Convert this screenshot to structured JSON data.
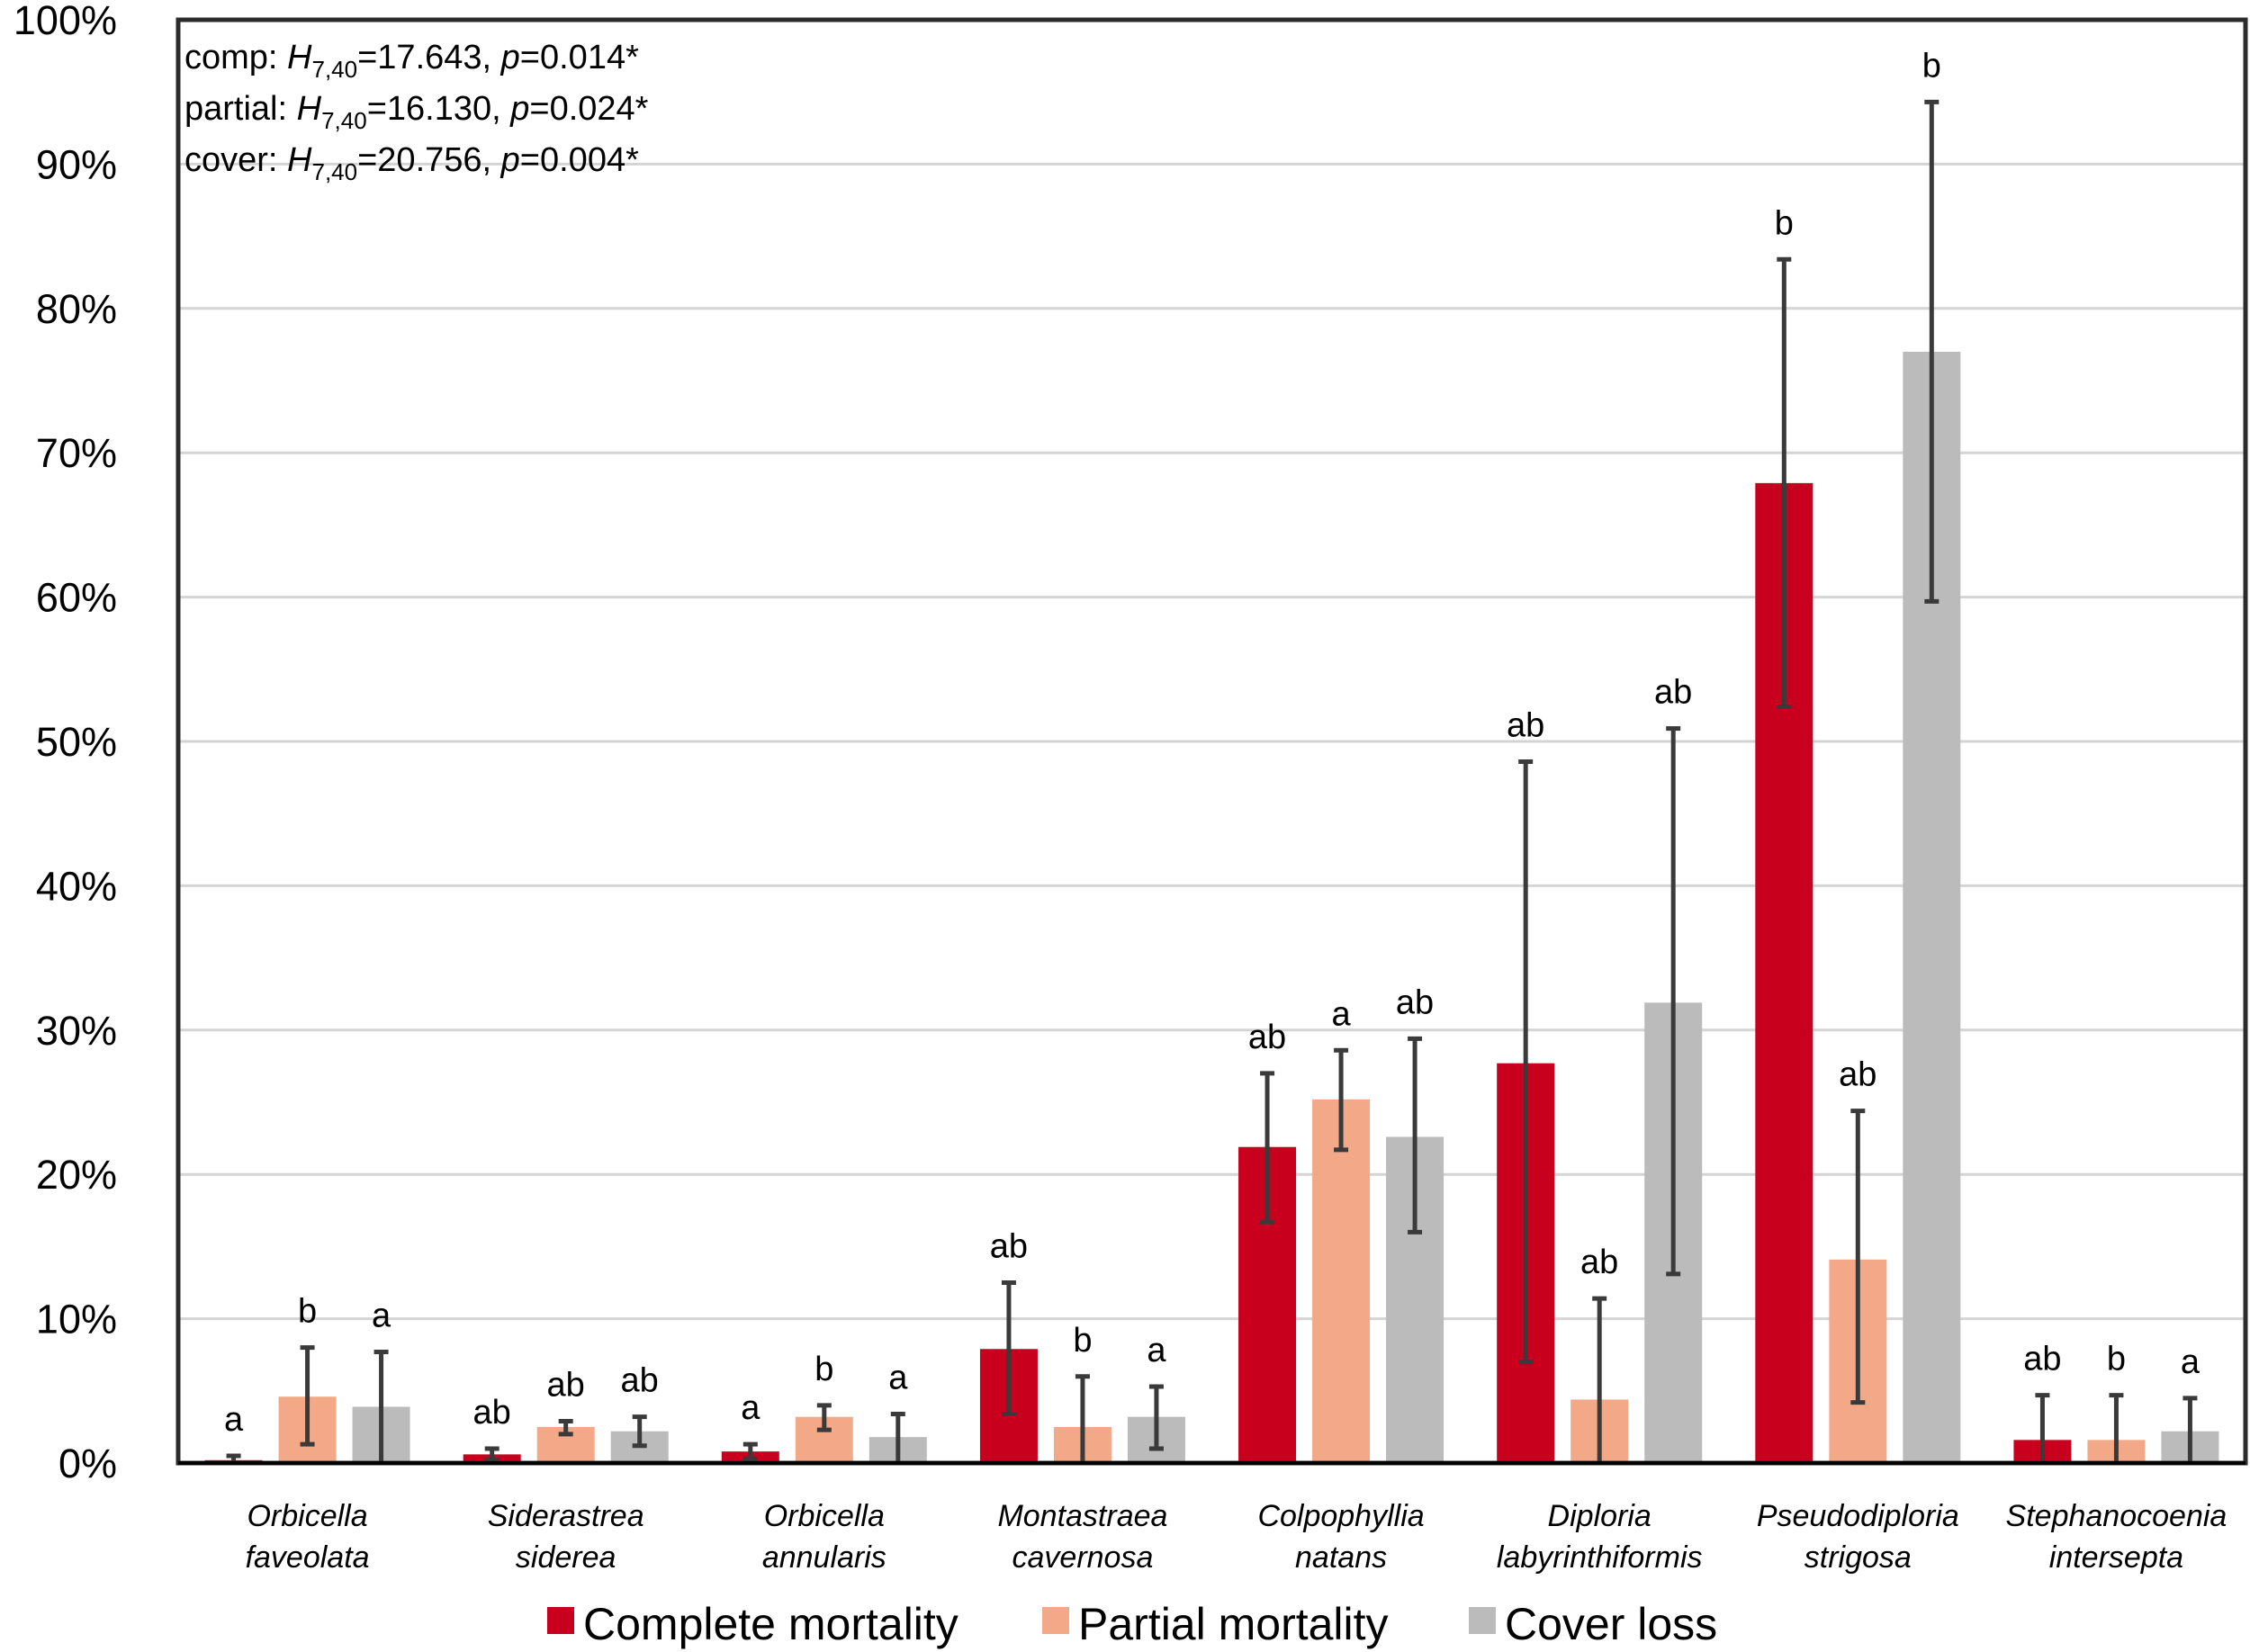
{
  "chart_data": {
    "type": "bar",
    "categories": [
      [
        "Orbicella",
        "faveolata"
      ],
      [
        "Siderastrea",
        "siderea"
      ],
      [
        "Orbicella",
        "annularis"
      ],
      [
        "Montastraea",
        "cavernosa"
      ],
      [
        "Colpophyllia",
        "natans"
      ],
      [
        "Diploria",
        "labyrinthiformis"
      ],
      [
        "Pseudodiploria",
        "strigosa"
      ],
      [
        "Stephanocoenia",
        "intersepta"
      ]
    ],
    "y_unit": "%",
    "ylim": [
      0,
      100
    ],
    "yticks": [
      0,
      10,
      20,
      30,
      40,
      50,
      60,
      70,
      80,
      90,
      100
    ],
    "ytick_labels": [
      "0%",
      "10%",
      "20%",
      "30%",
      "40%",
      "50%",
      "60%",
      "70%",
      "80%",
      "90%",
      "100%"
    ],
    "grid": true,
    "legend_position": "bottom",
    "series": [
      {
        "name": "Complete mortality",
        "color": "#c8001e",
        "values": [
          0.2,
          0.6,
          0.8,
          7.9,
          21.9,
          27.7,
          67.9,
          1.6
        ],
        "error_low": [
          0,
          0.2,
          0.3,
          3.4,
          16.7,
          7.0,
          52.4,
          0
        ],
        "error_high": [
          0.5,
          1.0,
          1.3,
          12.5,
          27.0,
          48.6,
          83.4,
          4.7
        ],
        "letters": [
          "a",
          "ab",
          "a",
          "ab",
          "ab",
          "ab",
          "b",
          "ab"
        ]
      },
      {
        "name": "Partial mortality",
        "color": "#f3a987",
        "values": [
          4.6,
          2.5,
          3.2,
          2.5,
          25.2,
          4.4,
          14.1,
          1.6
        ],
        "error_low": [
          1.3,
          2.0,
          2.3,
          0,
          21.7,
          0,
          4.2,
          0
        ],
        "error_high": [
          8.0,
          2.9,
          4.0,
          6.0,
          28.6,
          11.4,
          24.4,
          4.7
        ],
        "letters": [
          "b",
          "ab",
          "b",
          "b",
          "a",
          "ab",
          "ab",
          "b"
        ]
      },
      {
        "name": "Cover loss",
        "color": "#bbbbbb",
        "values": [
          3.9,
          2.2,
          1.8,
          3.2,
          22.6,
          31.9,
          77.0,
          2.2
        ],
        "error_low": [
          0,
          1.2,
          0,
          1.0,
          16.0,
          13.1,
          59.7,
          0
        ],
        "error_high": [
          7.7,
          3.2,
          3.4,
          5.3,
          29.4,
          50.9,
          94.3,
          4.5
        ],
        "letters": [
          "a",
          "ab",
          "a",
          "a",
          "ab",
          "ab",
          "b",
          "a"
        ]
      }
    ],
    "annotations": [
      {
        "prefix": "comp: ",
        "stat": "H",
        "subscript": "7,40",
        "value": "=17.643, ",
        "p": "p",
        "p_value": "=0.014*"
      },
      {
        "prefix": "partial: ",
        "stat": "H",
        "subscript": "7,40",
        "value": "=16.130, ",
        "p": "p",
        "p_value": "=0.024*"
      },
      {
        "prefix": "cover: ",
        "stat": "H",
        "subscript": "7,40",
        "value": "=20.756, ",
        "p": "p",
        "p_value": "=0.004*"
      }
    ]
  }
}
